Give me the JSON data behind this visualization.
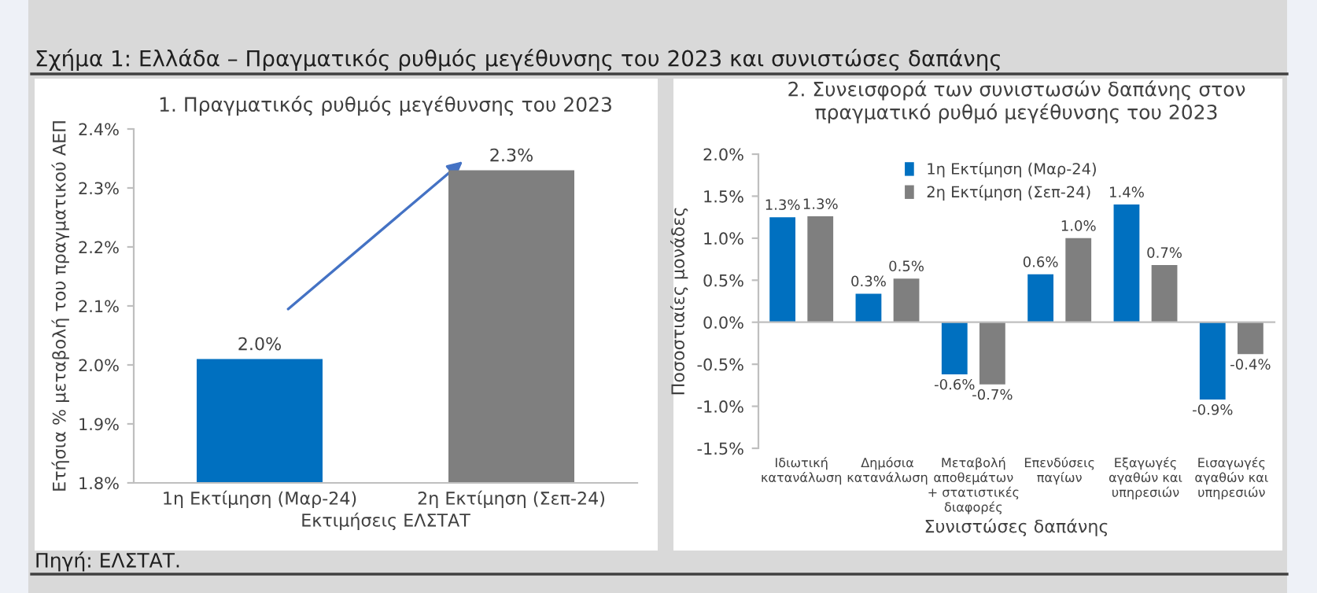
{
  "chart_data": [
    {
      "type": "bar",
      "title": "1. Πραγματικός ρυθμός μεγέθυνσης του 2023",
      "xlabel": "Εκτιμήσεις ΕΛΣΤΑΤ",
      "ylabel": "Ετήσια % μεταβολή του πραγματικού ΑΕΠ",
      "annotations": [
        "Σχήμα 1: Ελλάδα – Πραγματικός ρυθμός μεγέθυνσης του 2023 και συνιστώσες δαπάνης",
        "Πηγή: ΕΛΣΤΑΤ."
      ],
      "categories": [
        "1η Εκτίμηση (Μαρ-24)",
        "2η Εκτίμηση (Σεπ-24)"
      ],
      "values": [
        2.01,
        2.33
      ],
      "colors": [
        "#0070c0",
        "#7f7f7f"
      ],
      "value_labels": [
        "2.0%",
        "2.3%"
      ],
      "ylim": [
        1.8,
        2.4
      ],
      "yticks": [
        {
          "value": 1.8,
          "label": "1.8%"
        },
        {
          "value": 1.9,
          "label": "1.9%"
        },
        {
          "value": 2.0,
          "label": "2.0%"
        },
        {
          "value": 2.1,
          "label": "2.1%"
        },
        {
          "value": 2.2,
          "label": "2.2%"
        },
        {
          "value": 2.3,
          "label": "2.3%"
        },
        {
          "value": 2.4,
          "label": "2.4%"
        }
      ],
      "grid": false,
      "legend": false
    },
    {
      "type": "bar",
      "title": "2. Συνεισφορά των συνιστωσών δαπάνης στον\nπραγματικό ρυθμό μεγέθυνσης του 2023",
      "xlabel": "Συνιστώσες δαπάνης",
      "ylabel": "Ποσοστιαίες μονάδες",
      "categories": [
        "Ιδιωτική\nκατανάλωση",
        "Δημόσια\nκατανάλωση",
        "Μεταβολή\nαποθεμάτων\n+ στατιστικές\nδιαφορές",
        "Επενδύσεις\nπαγίων",
        "Εξαγωγές\nαγαθών και\nυπηρεσιών",
        "Εισαγωγές\nαγαθών και\nυπηρεσιών"
      ],
      "series": [
        {
          "name": "1η Εκτίμηση (Μαρ-24)",
          "color": "#0070c0",
          "values": [
            1.25,
            0.34,
            -0.62,
            0.57,
            1.4,
            -0.92
          ],
          "value_labels": [
            "1.3%",
            "0.3%",
            "-0.6%",
            "0.6%",
            "1.4%",
            "-0.9%"
          ]
        },
        {
          "name": "2η Εκτίμηση (Σεπ-24)",
          "color": "#7f7f7f",
          "values": [
            1.26,
            0.52,
            -0.74,
            1.0,
            0.68,
            -0.38
          ],
          "value_labels": [
            "1.3%",
            "0.5%",
            "-0.7%",
            "1.0%",
            "0.7%",
            "-0.4%"
          ]
        }
      ],
      "ylim": [
        -1.5,
        2.0
      ],
      "yticks": [
        {
          "value": -1.5,
          "label": "-1.5%"
        },
        {
          "value": -1.0,
          "label": "-1.0%"
        },
        {
          "value": -0.5,
          "label": "-0.5%"
        },
        {
          "value": 0.0,
          "label": "0.0%"
        },
        {
          "value": 0.5,
          "label": "0.5%"
        },
        {
          "value": 1.0,
          "label": "1.0%"
        },
        {
          "value": 1.5,
          "label": "1.5%"
        },
        {
          "value": 2.0,
          "label": "2.0%"
        }
      ],
      "legend": "top"
    }
  ]
}
